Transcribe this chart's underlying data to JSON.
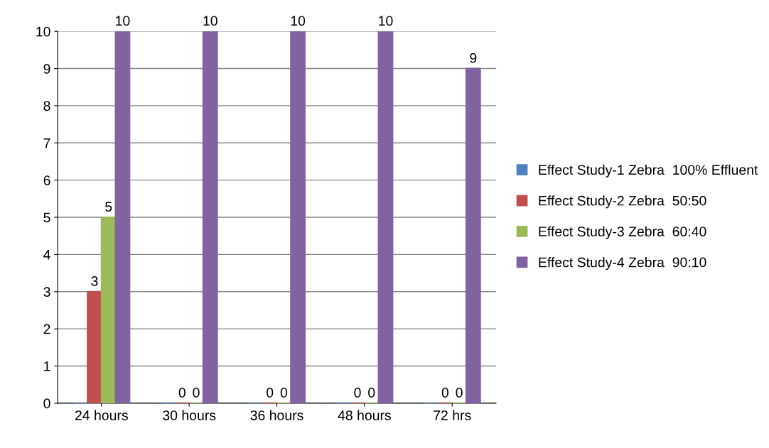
{
  "chart_data": {
    "type": "bar",
    "categories": [
      "24 hours",
      "30 hours",
      "36 hours",
      "48 hours",
      "72 hrs"
    ],
    "series": [
      {
        "name": "Effect Study-1 Zebra  100% Effluent",
        "color": "#4f81bd",
        "values": [
          0,
          0,
          0,
          0,
          0
        ],
        "value_labels": [
          null,
          null,
          null,
          null,
          null
        ]
      },
      {
        "name": "Effect Study-2 Zebra  50:50",
        "color": "#c0504d",
        "values": [
          3,
          0,
          0,
          0,
          0
        ],
        "value_labels": [
          "3",
          "0",
          "0",
          "0",
          "0"
        ]
      },
      {
        "name": "Effect Study-3 Zebra  60:40",
        "color": "#9bbb59",
        "values": [
          5,
          0,
          0,
          0,
          0
        ],
        "value_labels": [
          "5",
          "0",
          "0",
          "0",
          "0"
        ]
      },
      {
        "name": "Effect Study-4 Zebra  90:10",
        "color": "#8064a2",
        "values": [
          10,
          10,
          10,
          10,
          9
        ],
        "value_labels": [
          "10",
          "10",
          "10",
          "10",
          "9"
        ]
      }
    ],
    "ylim": [
      0,
      10
    ],
    "yticks": [
      0,
      1,
      2,
      3,
      4,
      5,
      6,
      7,
      8,
      9,
      10
    ],
    "grid": "y",
    "legend": "right"
  }
}
